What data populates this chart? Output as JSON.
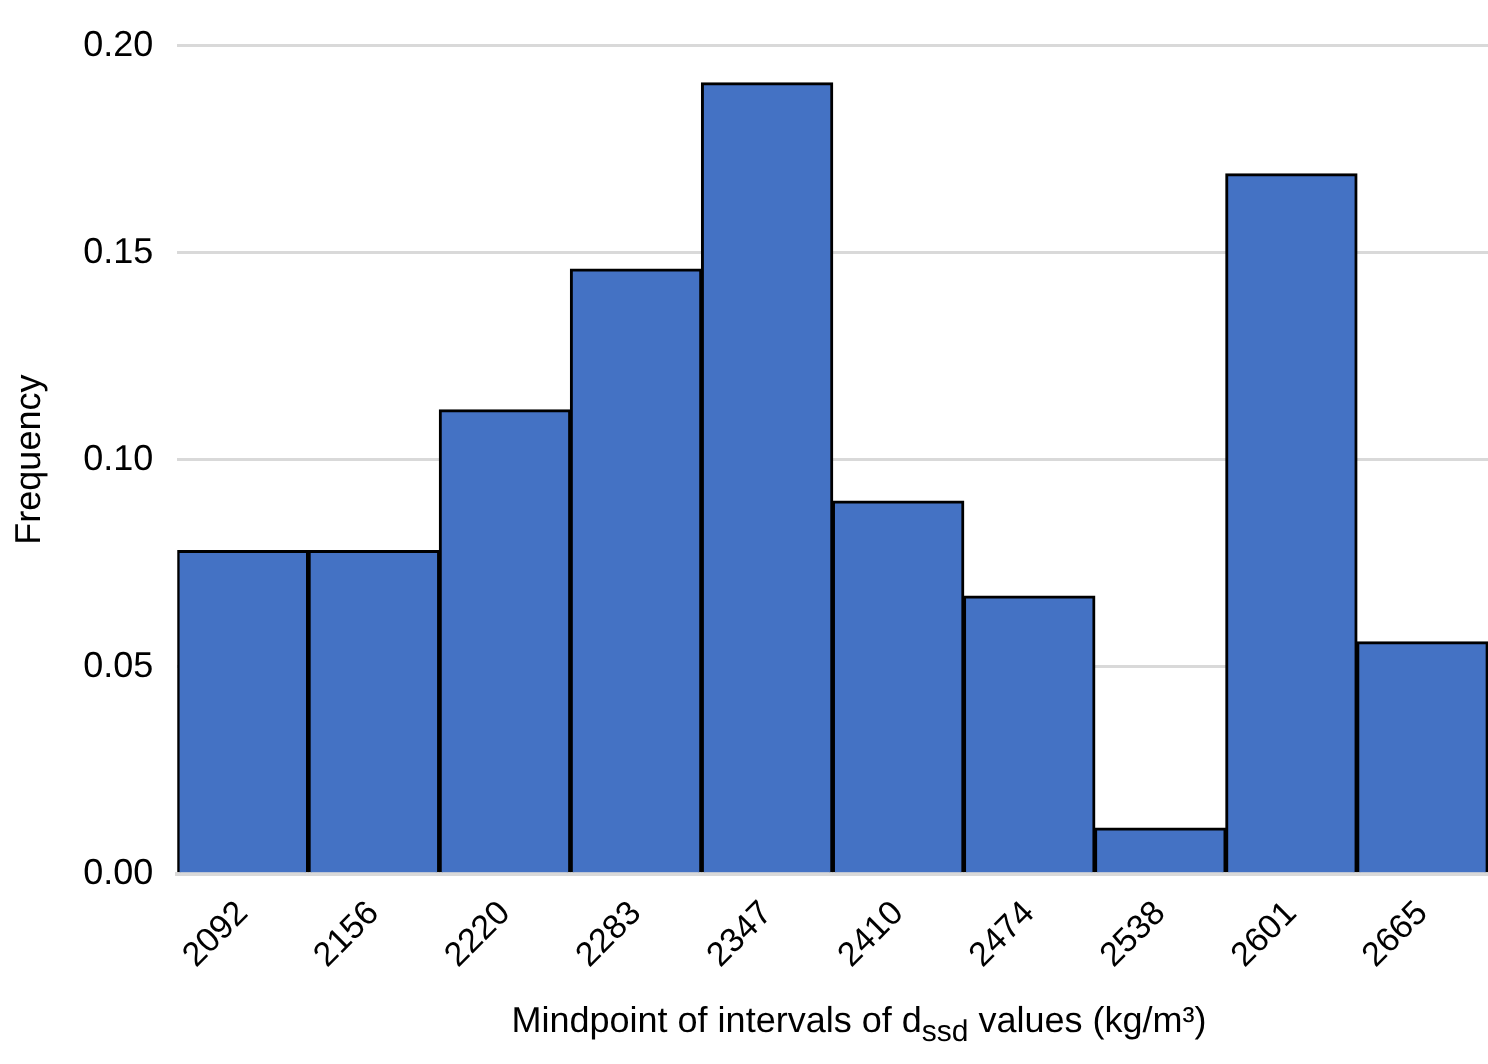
{
  "chart_data": {
    "type": "bar",
    "xlabel": "Mindpoint of intervals of d$_{ssd}$ values (kg/m³)",
    "ylabel": "Frequency",
    "categories": [
      "2092",
      "2156",
      "2220",
      "2283",
      "2347",
      "2410",
      "2474",
      "2538",
      "2601",
      "2665"
    ],
    "values": [
      0.078,
      0.078,
      0.112,
      0.146,
      0.191,
      0.09,
      0.067,
      0.011,
      0.169,
      0.056
    ],
    "color": "#4472c4",
    "ylim": [
      0,
      0.2
    ],
    "yticks": [
      {
        "value": 0,
        "label": "0.00"
      },
      {
        "value": 0.05,
        "label": "0.05"
      },
      {
        "value": 0.1,
        "label": "0.10"
      },
      {
        "value": 0.15,
        "label": "0.15"
      },
      {
        "value": 0.2,
        "label": "0.20"
      }
    ],
    "grid": "y"
  }
}
